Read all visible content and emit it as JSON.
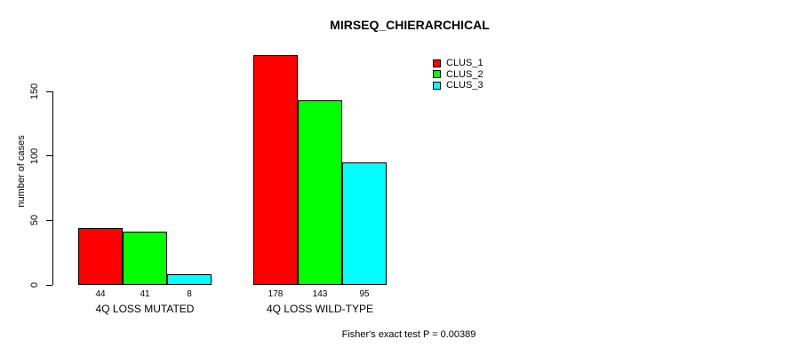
{
  "chart": {
    "title": "MIRSEQ_CHIERARCHICAL",
    "ylabel": "number of cases",
    "footer": "Fisher's exact test P = 0.00389"
  },
  "chart_data": {
    "type": "bar",
    "title": "MIRSEQ_CHIERARCHICAL",
    "xlabel": "",
    "ylabel": "number of cases",
    "categories": [
      "4Q LOSS MUTATED",
      "4Q LOSS WILD-TYPE"
    ],
    "series": [
      {
        "name": "CLUS_1",
        "color": "#ff0000",
        "values": [
          44,
          178
        ]
      },
      {
        "name": "CLUS_2",
        "color": "#00ff00",
        "values": [
          41,
          143
        ]
      },
      {
        "name": "CLUS_3",
        "color": "#00ffff",
        "values": [
          8,
          95
        ]
      }
    ],
    "bar_value_labels": [
      [
        "44",
        "41",
        "8"
      ],
      [
        "178",
        "143",
        "95"
      ]
    ],
    "yticks": [
      "0",
      "50",
      "100",
      "150"
    ],
    "ylim": [
      0,
      178
    ],
    "grid": false,
    "legend": {
      "position": "top-right",
      "entries": [
        "CLUS_1",
        "CLUS_2",
        "CLUS_3"
      ]
    },
    "annotation": "Fisher's exact test P = 0.00389"
  }
}
